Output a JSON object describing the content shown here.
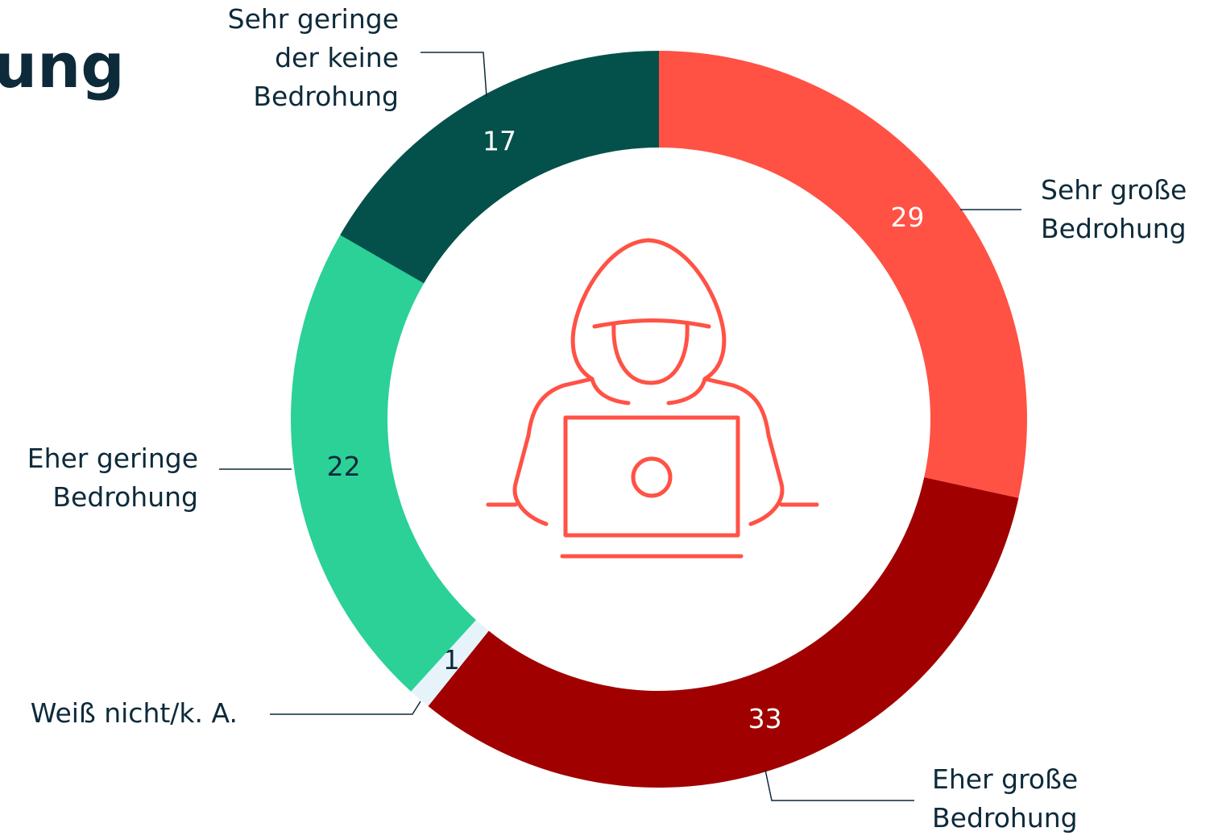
{
  "chart_data": {
    "type": "donut",
    "title": "ung",
    "categories": [
      "Sehr große\nBedrohung",
      "Eher große\nBedrohung",
      "Weiß nicht/k. A.",
      "Eher geringe\nBedrohung",
      "Sehr geringe\nder keine\nBedrohung"
    ],
    "values": [
      29,
      33,
      1,
      22,
      17
    ],
    "colors": [
      "#ff5245",
      "#a00000",
      "#e6f3fb",
      "#2bd197",
      "#03514a"
    ],
    "value_label_colors": [
      "#ffffff",
      "#ffffff",
      "#0d2a3a",
      "#0d2a3a",
      "#ffffff"
    ]
  }
}
